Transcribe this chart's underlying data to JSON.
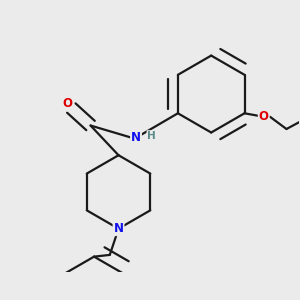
{
  "background_color": "#ebebeb",
  "bond_color": "#1a1a1a",
  "atom_colors": {
    "N": "#1010ee",
    "O": "#dd0000",
    "H": "#5a8a8a"
  },
  "figsize": [
    3.0,
    3.0
  ],
  "dpi": 100,
  "lw": 1.6
}
